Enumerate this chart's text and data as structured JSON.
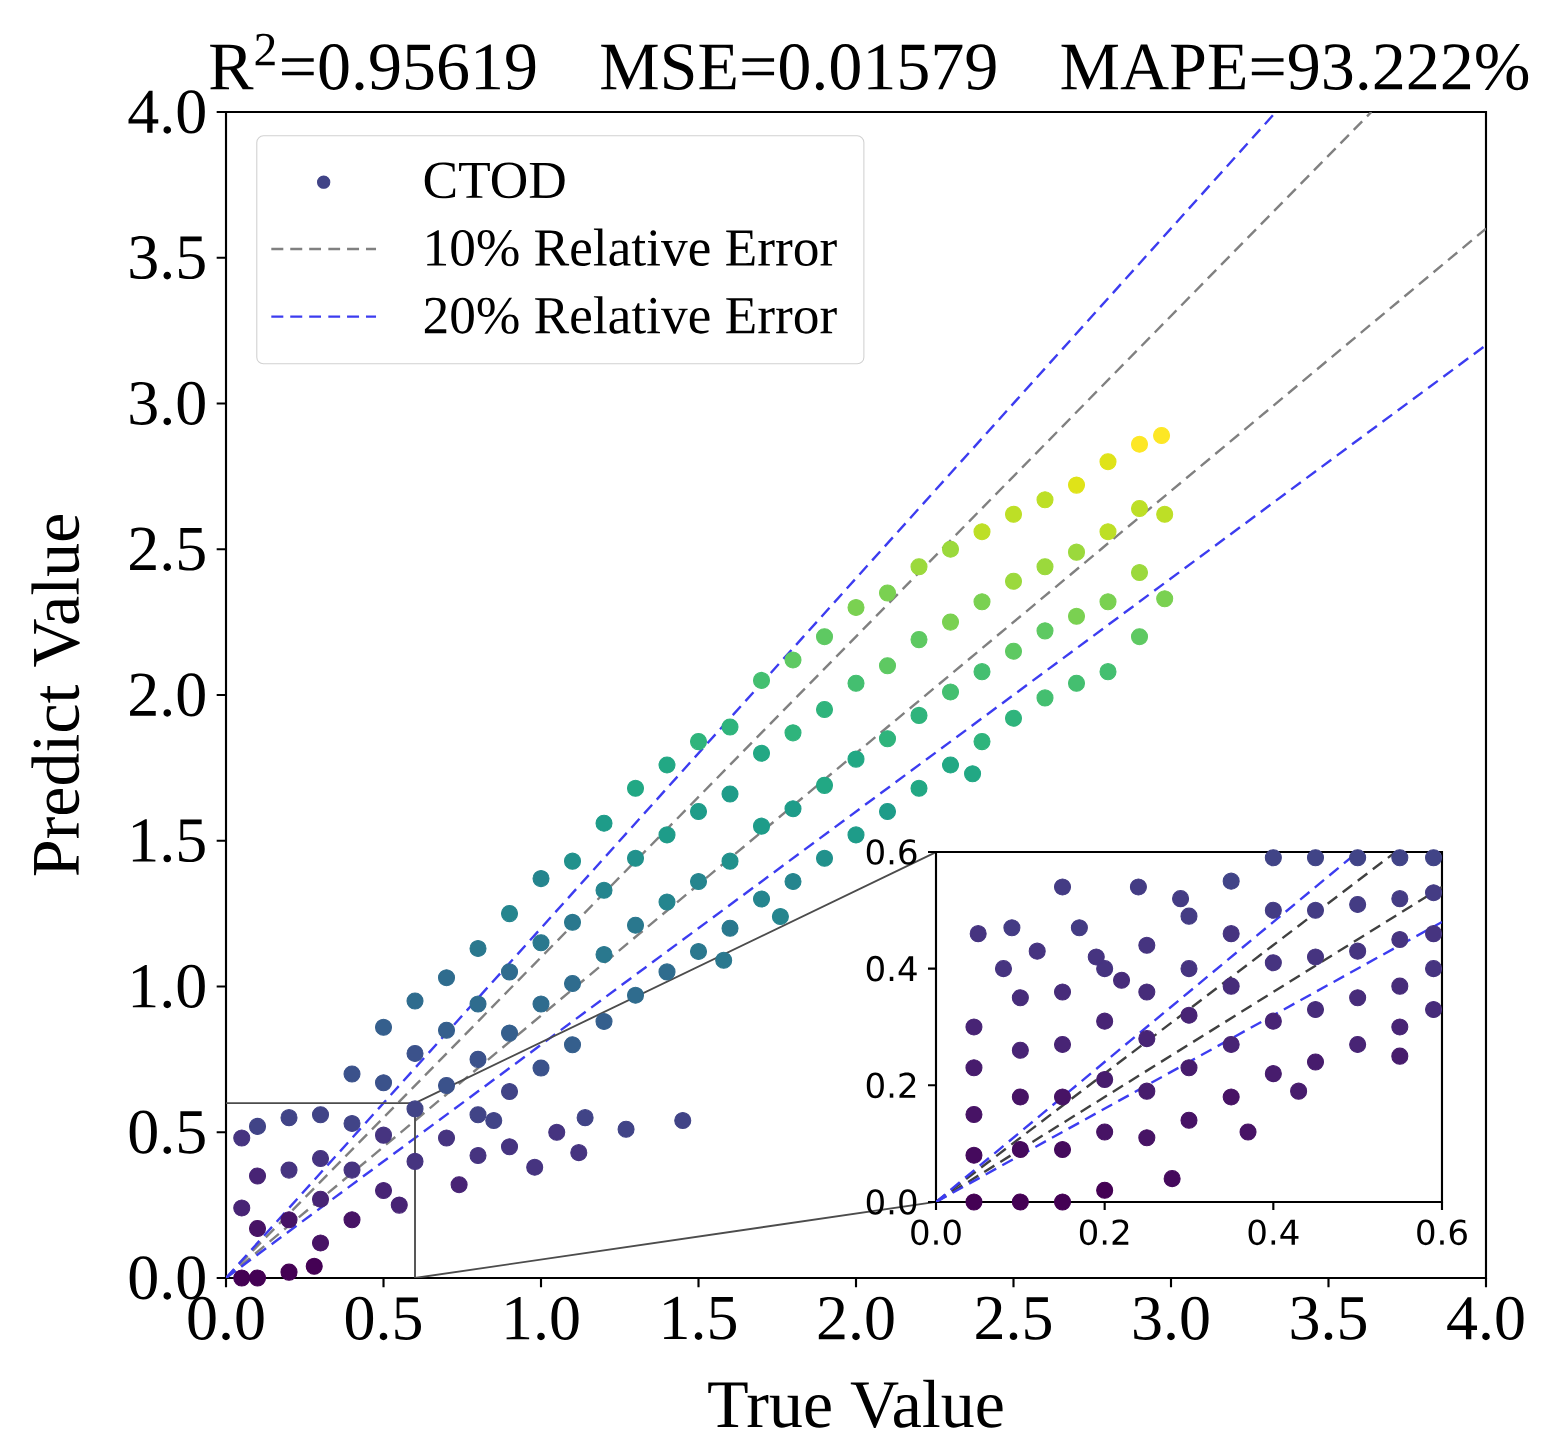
{
  "chart_data": [
    {
      "type": "scatter",
      "title": "R$^{2}$=0.95619 MSE=0.01579 MAPE=93.222%",
      "xlabel": "True Value",
      "ylabel": "Predict Value",
      "xlim": [
        0,
        4
      ],
      "ylim": [
        0,
        4
      ],
      "xticks": [
        {
          "value": 0,
          "label": "0.0"
        },
        0.5,
        {
          "value": 1,
          "label": "1.0"
        },
        1.5,
        {
          "value": 2,
          "label": "2.0"
        },
        2.5,
        {
          "value": 3,
          "label": "3.0"
        },
        3.5,
        {
          "value": 4,
          "label": "4.0"
        }
      ],
      "yticks": [
        {
          "value": 0,
          "label": "0.0"
        },
        0.5,
        {
          "value": 1,
          "label": "1.0"
        },
        1.5,
        {
          "value": 2,
          "label": "2.0"
        },
        2.5,
        {
          "value": 3,
          "label": "3.0"
        },
        3.5,
        {
          "value": 4,
          "label": "4.0"
        }
      ],
      "legend": "top left",
      "series": [
        {
          "name": "CTOD",
          "marker": "circle",
          "color": "#414487",
          "x": [
            0.05,
            0.05,
            0.05,
            0.1,
            0.1,
            0.1,
            0.1,
            0.2,
            0.2,
            0.2,
            0.2,
            0.3,
            0.3,
            0.3,
            0.3,
            0.4,
            0.4,
            0.4,
            0.4,
            0.5,
            0.5,
            0.5,
            0.5,
            0.6,
            0.6,
            0.6,
            0.6,
            0.7,
            0.7,
            0.7,
            0.7,
            0.8,
            0.8,
            0.8,
            0.8,
            0.9,
            0.9,
            0.9,
            0.9,
            1.0,
            1.0,
            1.0,
            1.0,
            1.1,
            1.1,
            1.1,
            1.1,
            1.2,
            1.2,
            1.2,
            1.2,
            1.3,
            1.3,
            1.3,
            1.3,
            1.4,
            1.4,
            1.4,
            1.4,
            1.5,
            1.5,
            1.5,
            1.5,
            1.6,
            1.6,
            1.6,
            1.6,
            1.7,
            1.7,
            1.7,
            1.7,
            1.8,
            1.8,
            1.8,
            1.8,
            1.9,
            1.9,
            1.9,
            1.9,
            2.0,
            2.0,
            2.0,
            2.0,
            2.1,
            2.1,
            2.1,
            2.1,
            2.2,
            2.2,
            2.2,
            2.2,
            2.3,
            2.3,
            2.3,
            2.3,
            2.4,
            2.4,
            2.4,
            2.4,
            2.5,
            2.5,
            2.5,
            2.5,
            2.6,
            2.6,
            2.6,
            2.6,
            2.7,
            2.7,
            2.7,
            2.7,
            2.8,
            2.8,
            2.8,
            2.8,
            2.9,
            2.9,
            2.9,
            2.9,
            2.98,
            2.98,
            2.97,
            1.45,
            1.27,
            1.12,
            1.14,
            0.98,
            0.74,
            0.85,
            0.55,
            1.76,
            1.58,
            2.37,
            0.28,
            0.9,
            1.05,
            0.8
          ],
          "values": [
            0.0,
            0.24,
            0.48,
            0.0,
            0.17,
            0.35,
            0.52,
            0.02,
            0.2,
            0.37,
            0.55,
            0.12,
            0.27,
            0.41,
            0.56,
            0.2,
            0.37,
            0.53,
            0.7,
            0.3,
            0.49,
            0.67,
            0.86,
            0.4,
            0.58,
            0.77,
            0.95,
            0.48,
            0.66,
            0.85,
            1.03,
            0.56,
            0.75,
            0.94,
            1.13,
            0.64,
            0.84,
            1.05,
            1.25,
            0.72,
            0.94,
            1.15,
            1.37,
            0.8,
            1.01,
            1.22,
            1.43,
            0.88,
            1.11,
            1.33,
            1.56,
            0.97,
            1.21,
            1.44,
            1.68,
            1.05,
            1.29,
            1.52,
            1.76,
            1.12,
            1.36,
            1.6,
            1.84,
            1.2,
            1.43,
            1.66,
            1.89,
            1.3,
            1.55,
            1.8,
            2.05,
            1.36,
            1.61,
            1.87,
            2.12,
            1.44,
            1.69,
            1.95,
            2.2,
            1.52,
            1.78,
            2.04,
            2.3,
            1.6,
            1.85,
            2.1,
            2.35,
            1.68,
            1.93,
            2.19,
            2.44,
            1.76,
            2.01,
            2.25,
            2.5,
            1.84,
            2.08,
            2.32,
            2.56,
            1.92,
            2.15,
            2.39,
            2.62,
            1.99,
            2.22,
            2.44,
            2.67,
            2.04,
            2.27,
            2.49,
            2.72,
            2.08,
            2.32,
            2.56,
            2.8,
            2.2,
            2.42,
            2.64,
            2.86,
            2.33,
            2.62,
            2.89,
            0.54,
            0.51,
            0.43,
            0.55,
            0.38,
            0.32,
            0.54,
            0.25,
            1.24,
            1.09,
            1.73,
            0.04,
            0.45,
            0.5,
            0.42
          ],
          "colors": [
            "#440154",
            "#482475",
            "#463480",
            "#440154",
            "#471365",
            "#482475",
            "#414487",
            "#440154",
            "#471365",
            "#463480",
            "#414487",
            "#471365",
            "#482475",
            "#463480",
            "#414487",
            "#471365",
            "#463480",
            "#414487",
            "#3b528b",
            "#482475",
            "#463480",
            "#3b528b",
            "#355f8d",
            "#463480",
            "#414487",
            "#3b528b",
            "#2f6c8e",
            "#463480",
            "#3b528b",
            "#355f8d",
            "#2f6c8e",
            "#414487",
            "#3b528b",
            "#2f6c8e",
            "#2a788e",
            "#414487",
            "#355f8d",
            "#2f6c8e",
            "#25858e",
            "#3b528b",
            "#2f6c8e",
            "#2a788e",
            "#25858e",
            "#355f8d",
            "#2f6c8e",
            "#2a788e",
            "#21918c",
            "#355f8d",
            "#2a788e",
            "#25858e",
            "#1e9c89",
            "#2f6c8e",
            "#2a788e",
            "#21918c",
            "#22a884",
            "#2f6c8e",
            "#25858e",
            "#1e9c89",
            "#22a884",
            "#2a788e",
            "#25858e",
            "#1e9c89",
            "#2fb47c",
            "#2a788e",
            "#21918c",
            "#1e9c89",
            "#2fb47c",
            "#25858e",
            "#1e9c89",
            "#22a884",
            "#44bf70",
            "#25858e",
            "#1e9c89",
            "#2fb47c",
            "#5ec962",
            "#21918c",
            "#22a884",
            "#2fb47c",
            "#5ec962",
            "#1e9c89",
            "#22a884",
            "#44bf70",
            "#7ad151",
            "#1e9c89",
            "#2fb47c",
            "#5ec962",
            "#7ad151",
            "#22a884",
            "#2fb47c",
            "#5ec962",
            "#9bd93c",
            "#22a884",
            "#44bf70",
            "#7ad151",
            "#9bd93c",
            "#2fb47c",
            "#44bf70",
            "#7ad151",
            "#bddf26",
            "#2fb47c",
            "#5ec962",
            "#9bd93c",
            "#bddf26",
            "#44bf70",
            "#5ec962",
            "#9bd93c",
            "#bddf26",
            "#44bf70",
            "#7ad151",
            "#9bd93c",
            "#dfe318",
            "#44bf70",
            "#7ad151",
            "#bddf26",
            "#dfe318",
            "#5ec962",
            "#9bd93c",
            "#bddf26",
            "#fde725",
            "#7ad151",
            "#bddf26",
            "#fde725",
            "#414487",
            "#414487",
            "#463480",
            "#414487",
            "#463480",
            "#482475",
            "#414487",
            "#482475",
            "#25858e",
            "#2a788e",
            "#22a884",
            "#440154",
            "#463480",
            "#463480",
            "#463480"
          ]
        },
        {
          "name": "10% Relative Error",
          "type": "line",
          "line_style": "dashed",
          "color": "#808080",
          "x": [
            0,
            3.636
          ],
          "values": [
            0,
            4.0
          ]
        },
        {
          "type": "line",
          "line_style": "dashed",
          "color": "#808080",
          "x": [
            0,
            4
          ],
          "values": [
            0,
            3.6
          ]
        },
        {
          "name": "20% Relative Error",
          "type": "line",
          "line_style": "dashed",
          "color": "#3c3cf0",
          "x": [
            0,
            3.333
          ],
          "values": [
            0,
            4.0
          ]
        },
        {
          "type": "line",
          "line_style": "dashed",
          "color": "#3c3cf0",
          "x": [
            0,
            4
          ],
          "values": [
            0,
            3.2
          ]
        },
        {
          "type": "line",
          "line_style": "solid",
          "color": "#4c4c4c",
          "x": [
            0,
            0.6,
            2.254
          ],
          "values": [
            0.6,
            0.6,
            1.461
          ]
        },
        {
          "type": "line",
          "line_style": "solid",
          "color": "#4c4c4c",
          "x": [
            0.6,
            0.6
          ],
          "values": [
            0,
            0.6
          ]
        },
        {
          "type": "line",
          "line_style": "solid",
          "color": "#4c4c4c",
          "x": [
            0.6,
            2.254
          ],
          "values": [
            0,
            0.261
          ]
        }
      ]
    },
    {
      "type": "scatter",
      "xlim": [
        0,
        0.6
      ],
      "ylim": [
        0,
        0.6
      ],
      "xticks": [
        {
          "value": 0,
          "label": "0.0"
        },
        0.2,
        0.4,
        0.6
      ],
      "yticks": [
        {
          "value": 0,
          "label": "0.0"
        },
        0.2,
        0.4,
        0.6
      ],
      "series": [
        {
          "marker": "circle",
          "x": [
            0.045,
            0.045,
            0.045,
            0.045,
            0.045,
            0.1,
            0.1,
            0.1,
            0.1,
            0.1,
            0.15,
            0.15,
            0.15,
            0.15,
            0.15,
            0.2,
            0.2,
            0.2,
            0.2,
            0.2,
            0.25,
            0.25,
            0.25,
            0.25,
            0.25,
            0.3,
            0.3,
            0.3,
            0.3,
            0.3,
            0.35,
            0.35,
            0.35,
            0.35,
            0.35,
            0.4,
            0.4,
            0.4,
            0.4,
            0.4,
            0.45,
            0.45,
            0.45,
            0.45,
            0.45,
            0.5,
            0.5,
            0.5,
            0.5,
            0.5,
            0.55,
            0.55,
            0.55,
            0.55,
            0.55,
            0.59,
            0.59,
            0.59,
            0.59,
            0.59,
            0.28,
            0.43,
            0.37,
            0.55,
            0.15,
            0.24,
            0.05,
            0.09,
            0.12,
            0.17,
            0.19,
            0.08,
            0.29,
            0.22
          ],
          "values": [
            0.0,
            0.08,
            0.15,
            0.23,
            0.3,
            0.0,
            0.09,
            0.18,
            0.26,
            0.35,
            0.0,
            0.09,
            0.18,
            0.27,
            0.36,
            0.02,
            0.12,
            0.21,
            0.31,
            0.4,
            0.11,
            0.19,
            0.28,
            0.36,
            0.44,
            0.14,
            0.23,
            0.32,
            0.4,
            0.49,
            0.18,
            0.27,
            0.37,
            0.46,
            0.55,
            0.22,
            0.31,
            0.41,
            0.5,
            0.59,
            0.24,
            0.33,
            0.42,
            0.5,
            0.59,
            0.27,
            0.35,
            0.43,
            0.51,
            0.59,
            0.3,
            0.37,
            0.45,
            0.52,
            0.59,
            0.33,
            0.4,
            0.46,
            0.53,
            0.59,
            0.04,
            0.19,
            0.12,
            0.25,
            0.54,
            0.54,
            0.46,
            0.47,
            0.43,
            0.47,
            0.42,
            0.4,
            0.52,
            0.38
          ],
          "colors": [
            "#440154",
            "#450a5d",
            "#471365",
            "#471c6d",
            "#482475",
            "#440154",
            "#450a5d",
            "#471365",
            "#482475",
            "#472c7a",
            "#440154",
            "#450a5d",
            "#471365",
            "#482475",
            "#472c7a",
            "#440154",
            "#471365",
            "#471c6d",
            "#482475",
            "#463480",
            "#471365",
            "#471c6d",
            "#482475",
            "#472c7a",
            "#463480",
            "#471365",
            "#471c6d",
            "#482475",
            "#463480",
            "#443c84",
            "#471365",
            "#482475",
            "#472c7a",
            "#463480",
            "#414487",
            "#471c6d",
            "#482475",
            "#463480",
            "#443c84",
            "#414487",
            "#471c6d",
            "#472c7a",
            "#463480",
            "#443c84",
            "#414487",
            "#482475",
            "#472c7a",
            "#463480",
            "#443c84",
            "#414487",
            "#482475",
            "#472c7a",
            "#463480",
            "#443c84",
            "#414487",
            "#472c7a",
            "#463480",
            "#463480",
            "#443c84",
            "#414487",
            "#450a5d",
            "#471c6d",
            "#471365",
            "#471c6d",
            "#443c84",
            "#443c84",
            "#463480",
            "#443c84",
            "#463480",
            "#443c84",
            "#463480",
            "#463480",
            "#443c84",
            "#472c7a"
          ]
        },
        {
          "type": "line",
          "line_style": "dashed",
          "color": "#404040",
          "x": [
            0,
            0.545
          ],
          "values": [
            0,
            0.6
          ]
        },
        {
          "type": "line",
          "line_style": "dashed",
          "color": "#404040",
          "x": [
            0,
            0.6
          ],
          "values": [
            0,
            0.54
          ]
        },
        {
          "type": "line",
          "line_style": "dashed",
          "color": "#3c3cf0",
          "x": [
            0,
            0.5
          ],
          "values": [
            0,
            0.6
          ]
        },
        {
          "type": "line",
          "line_style": "dashed",
          "color": "#3c3cf0",
          "x": [
            0,
            0.6
          ],
          "values": [
            0,
            0.48
          ]
        }
      ]
    }
  ]
}
